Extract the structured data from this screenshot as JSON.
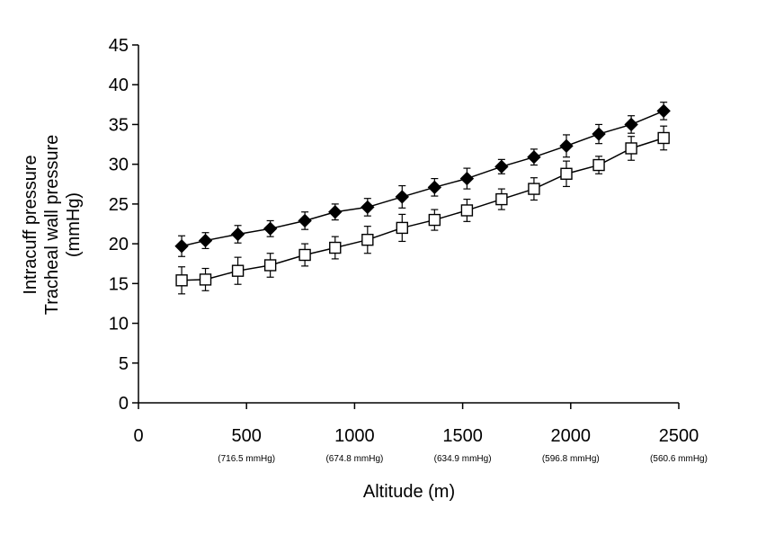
{
  "chart_data": {
    "type": "line",
    "title": "",
    "xlabel": "Altitude (m)",
    "ylabel_lines": [
      "Intracuff pressure",
      "Tracheal wall pressure",
      "(mmHg)"
    ],
    "xlim": [
      0,
      2500
    ],
    "ylim": [
      0,
      45
    ],
    "x_ticks": [
      0,
      500,
      1000,
      1500,
      2000,
      2500
    ],
    "y_ticks": [
      0,
      5,
      10,
      15,
      20,
      25,
      30,
      35,
      40,
      45
    ],
    "x_sublabels": [
      {
        "x": 500,
        "label": "(716.5 mmHg)"
      },
      {
        "x": 1000,
        "label": "(674.8 mmHg)"
      },
      {
        "x": 1500,
        "label": "(634.9 mmHg)"
      },
      {
        "x": 2000,
        "label": "(596.8 mmHg)"
      },
      {
        "x": 2500,
        "label": "(560.6 mmHg)"
      }
    ],
    "grid": false,
    "legend": false,
    "x": [
      200,
      310,
      460,
      610,
      770,
      910,
      1060,
      1220,
      1370,
      1520,
      1680,
      1830,
      1980,
      2130,
      2280,
      2430
    ],
    "series": [
      {
        "marker": "filled-diamond",
        "color": "#000000",
        "values": [
          19.7,
          20.4,
          21.2,
          21.9,
          22.9,
          24.0,
          24.6,
          25.9,
          27.1,
          28.2,
          29.7,
          30.9,
          32.3,
          33.8,
          35.0,
          36.7
        ],
        "errors": [
          1.3,
          1.0,
          1.1,
          1.0,
          1.1,
          1.0,
          1.1,
          1.4,
          1.1,
          1.3,
          0.9,
          1.0,
          1.4,
          1.2,
          1.1,
          1.1
        ]
      },
      {
        "marker": "open-square",
        "color": "#000000",
        "values": [
          15.4,
          15.5,
          16.6,
          17.3,
          18.6,
          19.5,
          20.5,
          22.0,
          23.0,
          24.2,
          25.6,
          26.9,
          28.8,
          29.9,
          32.0,
          33.3
        ],
        "errors": [
          1.7,
          1.4,
          1.7,
          1.5,
          1.4,
          1.4,
          1.7,
          1.7,
          1.3,
          1.4,
          1.3,
          1.4,
          1.6,
          1.1,
          1.5,
          1.5
        ]
      }
    ]
  }
}
